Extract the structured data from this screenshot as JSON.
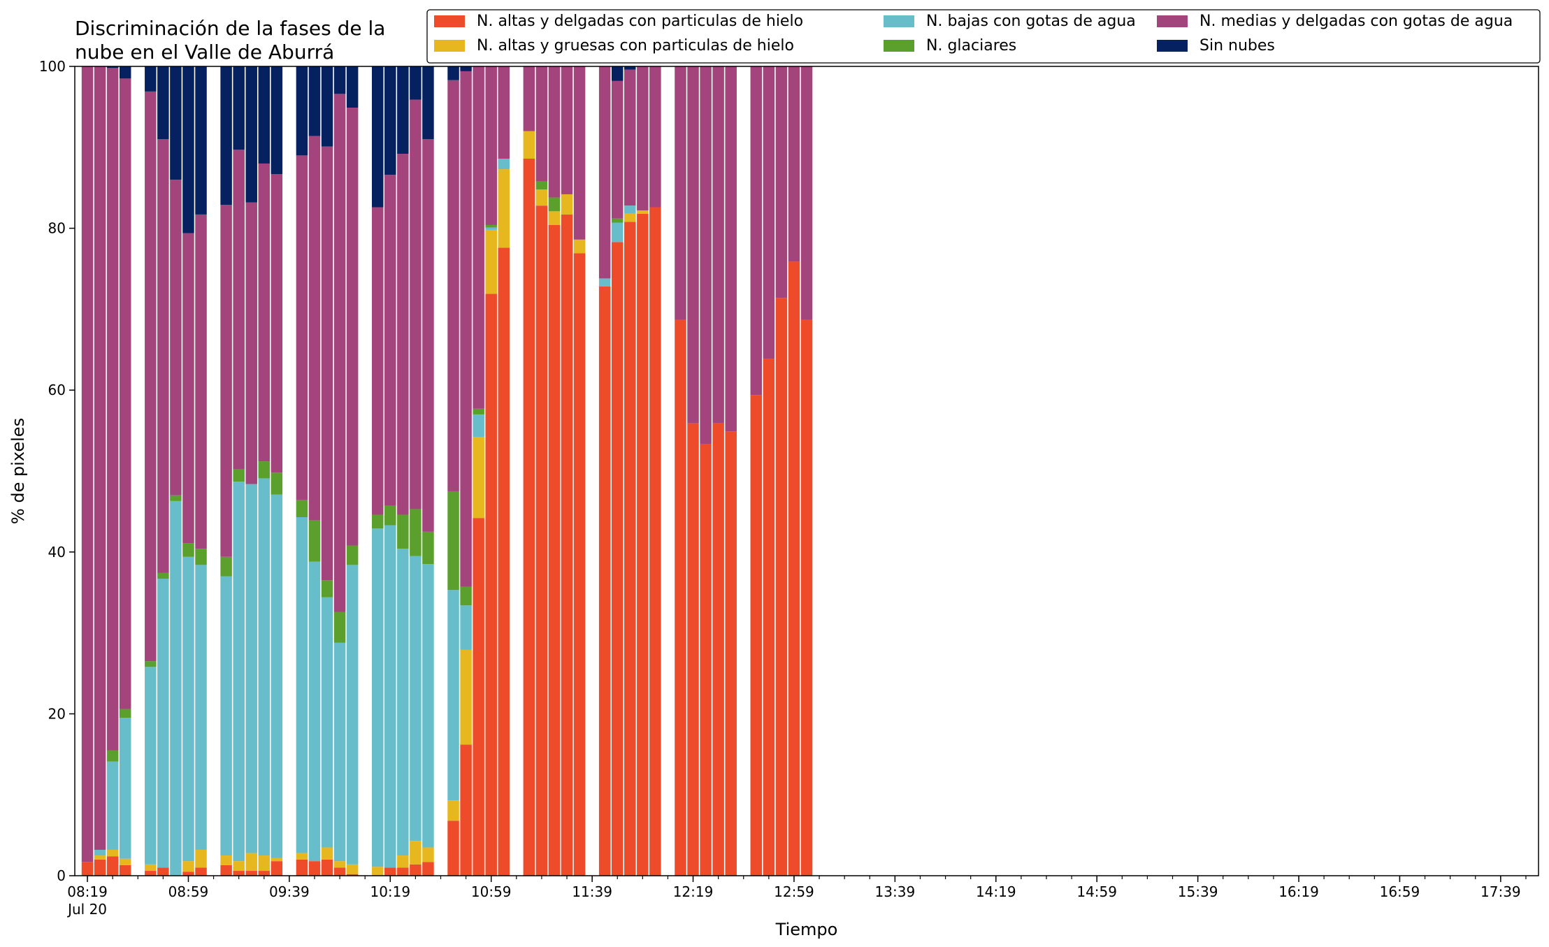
{
  "chart_data": {
    "type": "bar",
    "stacked": true,
    "title": [
      "Discriminación de la fases de la",
      "nube en el Valle de Aburrá"
    ],
    "xlabel": "Tiempo",
    "ylabel": "% de pixeles",
    "ylim": [
      0,
      100
    ],
    "yticks": [
      0,
      20,
      40,
      60,
      80,
      100
    ],
    "xticks": [
      {
        "time": "08:19",
        "label": "08:19",
        "sublabel": "Jul 20"
      },
      {
        "time": "08:59",
        "label": "08:59"
      },
      {
        "time": "09:39",
        "label": "09:39"
      },
      {
        "time": "10:19",
        "label": "10:19"
      },
      {
        "time": "10:59",
        "label": "10:59"
      },
      {
        "time": "11:39",
        "label": "11:39"
      },
      {
        "time": "12:19",
        "label": "12:19"
      },
      {
        "time": "12:59",
        "label": "12:59"
      },
      {
        "time": "13:39",
        "label": "13:39"
      },
      {
        "time": "14:19",
        "label": "14:19"
      },
      {
        "time": "14:59",
        "label": "14:59"
      },
      {
        "time": "15:39",
        "label": "15:39"
      },
      {
        "time": "16:19",
        "label": "16:19"
      },
      {
        "time": "16:59",
        "label": "16:59"
      },
      {
        "time": "17:39",
        "label": "17:39"
      }
    ],
    "xlim": [
      "08:14",
      "17:54"
    ],
    "grid": false,
    "legend_position": "top-right",
    "legend_columns": 3,
    "legend_order": [
      "hielo_delgadas",
      "hielo_gruesas",
      "bajas_agua",
      "glaciares",
      "medias_agua",
      "sin_nubes"
    ],
    "series": [
      {
        "key": "hielo_delgadas",
        "name": "N. altas y delgadas con particulas de hielo",
        "color": "#EE4B2B"
      },
      {
        "key": "hielo_gruesas",
        "name": "N. altas y gruesas con particulas de hielo",
        "color": "#E6B71E"
      },
      {
        "key": "bajas_agua",
        "name": "N. bajas con gotas de agua",
        "color": "#67BDC9"
      },
      {
        "key": "glaciares",
        "name": "N. glaciares",
        "color": "#5B9F2C"
      },
      {
        "key": "medias_agua",
        "name": "N. medias y delgadas con gotas de agua",
        "color": "#A3447C"
      },
      {
        "key": "sin_nubes",
        "name": "Sin nubes",
        "color": "#06215F"
      }
    ],
    "stack_order": [
      "hielo_delgadas",
      "hielo_gruesas",
      "bajas_agua",
      "glaciares",
      "medias_agua",
      "sin_nubes"
    ],
    "bars": [
      {
        "time": "08:19",
        "values": [
          1.7,
          0,
          0,
          0,
          98.3,
          0
        ]
      },
      {
        "time": "08:24",
        "values": [
          2.0,
          0.5,
          0.7,
          0,
          96.8,
          0
        ]
      },
      {
        "time": "08:29",
        "values": [
          2.4,
          0.8,
          10.9,
          1.4,
          84.3,
          0.2
        ]
      },
      {
        "time": "08:34",
        "values": [
          1.3,
          0.8,
          17.4,
          1.1,
          77.9,
          1.5
        ]
      },
      {
        "time": "08:44",
        "values": [
          0.6,
          0.8,
          24.4,
          0.7,
          70.4,
          3.1
        ]
      },
      {
        "time": "08:49",
        "values": [
          1.0,
          0,
          35.7,
          0.7,
          53.6,
          9.0
        ]
      },
      {
        "time": "08:54",
        "values": [
          0,
          0,
          46.3,
          0.7,
          39.0,
          14.0
        ]
      },
      {
        "time": "08:59",
        "values": [
          0.5,
          1.3,
          37.6,
          1.7,
          38.3,
          20.6
        ]
      },
      {
        "time": "09:04",
        "values": [
          1.0,
          2.2,
          35.2,
          2.0,
          41.3,
          18.3
        ]
      },
      {
        "time": "09:14",
        "values": [
          1.3,
          1.2,
          34.5,
          2.4,
          43.5,
          17.1
        ]
      },
      {
        "time": "09:19",
        "values": [
          0.6,
          1.2,
          46.9,
          1.5,
          39.5,
          10.3
        ]
      },
      {
        "time": "09:24",
        "values": [
          0.6,
          2.2,
          45.6,
          0,
          34.8,
          16.8
        ]
      },
      {
        "time": "09:29",
        "values": [
          0.6,
          1.9,
          46.6,
          2.1,
          36.8,
          12.0
        ]
      },
      {
        "time": "09:34",
        "values": [
          1.8,
          0.4,
          44.9,
          2.7,
          36.9,
          13.3
        ]
      },
      {
        "time": "09:44",
        "values": [
          2.0,
          0.8,
          41.5,
          2.1,
          42.6,
          11.0
        ]
      },
      {
        "time": "09:49",
        "values": [
          1.8,
          0,
          37.0,
          5.1,
          47.5,
          8.6
        ]
      },
      {
        "time": "09:54",
        "values": [
          2.0,
          1.5,
          30.9,
          2.1,
          53.6,
          9.9
        ]
      },
      {
        "time": "09:59",
        "values": [
          1.0,
          0.8,
          27.0,
          3.8,
          64.0,
          3.4
        ]
      },
      {
        "time": "10:04",
        "values": [
          0.2,
          1.2,
          37.0,
          2.4,
          54.1,
          5.1
        ]
      },
      {
        "time": "10:14",
        "values": [
          0,
          1.1,
          41.8,
          1.7,
          38.0,
          17.4
        ]
      },
      {
        "time": "10:19",
        "values": [
          1.0,
          0,
          42.3,
          2.4,
          40.9,
          13.4
        ]
      },
      {
        "time": "10:24",
        "values": [
          1.0,
          1.5,
          37.9,
          4.2,
          44.6,
          10.8
        ]
      },
      {
        "time": "10:29",
        "values": [
          1.4,
          2.9,
          35.2,
          5.8,
          50.6,
          4.1
        ]
      },
      {
        "time": "10:34",
        "values": [
          1.7,
          1.8,
          35.0,
          4.0,
          48.5,
          9.0
        ]
      },
      {
        "time": "10:44",
        "values": [
          6.8,
          2.5,
          26.0,
          12.2,
          50.8,
          1.7
        ]
      },
      {
        "time": "10:49",
        "values": [
          16.2,
          11.7,
          5.5,
          2.3,
          63.7,
          0.6
        ]
      },
      {
        "time": "10:54",
        "values": [
          44.2,
          10.0,
          2.8,
          0.7,
          42.3,
          0
        ]
      },
      {
        "time": "10:59",
        "values": [
          71.9,
          7.9,
          0.3,
          0.3,
          19.6,
          0
        ]
      },
      {
        "time": "11:04",
        "values": [
          77.6,
          9.7,
          1.3,
          0,
          11.4,
          0
        ]
      },
      {
        "time": "11:14",
        "values": [
          88.6,
          3.4,
          0,
          0,
          8.0,
          0
        ]
      },
      {
        "time": "11:19",
        "values": [
          82.8,
          2.0,
          0,
          1.0,
          14.2,
          0
        ]
      },
      {
        "time": "11:24",
        "values": [
          80.4,
          1.7,
          0,
          1.7,
          16.2,
          0
        ]
      },
      {
        "time": "11:29",
        "values": [
          81.7,
          2.5,
          0,
          0,
          15.8,
          0
        ]
      },
      {
        "time": "11:34",
        "values": [
          76.9,
          1.7,
          0,
          0,
          21.4,
          0
        ]
      },
      {
        "time": "11:44",
        "values": [
          72.8,
          0,
          1.0,
          0,
          26.2,
          0
        ]
      },
      {
        "time": "11:49",
        "values": [
          78.3,
          0,
          2.4,
          0.5,
          17.0,
          1.8
        ]
      },
      {
        "time": "11:54",
        "values": [
          80.8,
          1.0,
          1.0,
          0,
          16.8,
          0.4
        ]
      },
      {
        "time": "11:59",
        "values": [
          81.8,
          0.4,
          0,
          0,
          17.8,
          0
        ]
      },
      {
        "time": "12:04",
        "values": [
          82.6,
          0,
          0,
          0,
          17.4,
          0
        ]
      },
      {
        "time": "12:14",
        "values": [
          68.7,
          0,
          0,
          0,
          31.3,
          0
        ]
      },
      {
        "time": "12:19",
        "values": [
          55.9,
          0,
          0,
          0,
          44.1,
          0
        ]
      },
      {
        "time": "12:24",
        "values": [
          53.3,
          0,
          0,
          0,
          46.7,
          0
        ]
      },
      {
        "time": "12:29",
        "values": [
          55.9,
          0,
          0,
          0,
          44.1,
          0
        ]
      },
      {
        "time": "12:34",
        "values": [
          54.9,
          0,
          0,
          0,
          45.1,
          0
        ]
      },
      {
        "time": "12:44",
        "values": [
          59.4,
          0,
          0,
          0,
          40.6,
          0
        ]
      },
      {
        "time": "12:49",
        "values": [
          63.9,
          0,
          0,
          0,
          36.1,
          0
        ]
      },
      {
        "time": "12:54",
        "values": [
          71.4,
          0,
          0,
          0,
          28.6,
          0
        ]
      },
      {
        "time": "12:59",
        "values": [
          75.9,
          0,
          0,
          0,
          24.1,
          0
        ]
      },
      {
        "time": "13:04",
        "values": [
          68.7,
          0,
          0,
          0,
          31.3,
          0
        ]
      }
    ]
  }
}
